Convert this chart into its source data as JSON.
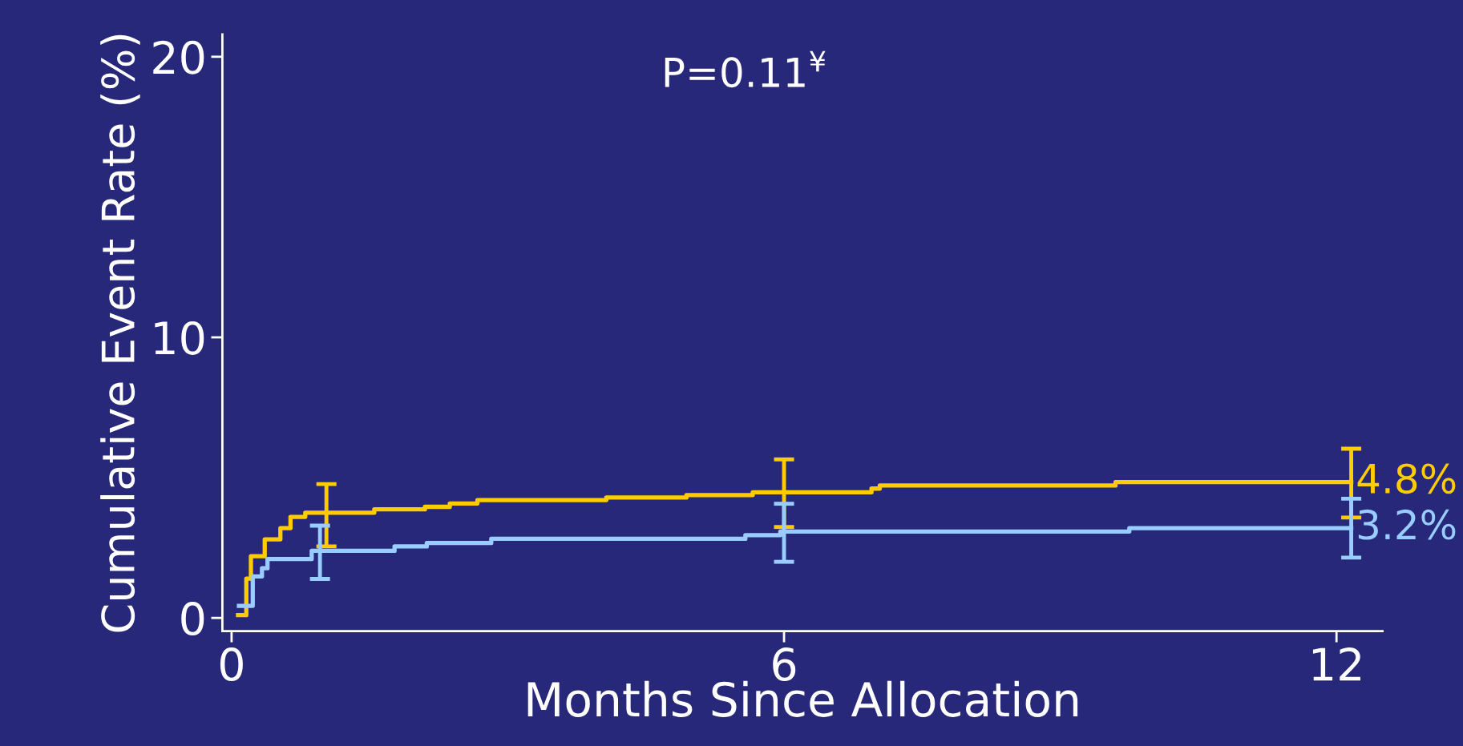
{
  "chart_data": {
    "type": "step",
    "xlabel": "Months Since Allocation",
    "ylabel": "Cumulative Event Rate (%)",
    "annotations": [
      "P=0.11$^{¥}$"
    ],
    "xlim": [
      -0.1,
      12.5
    ],
    "xticks": [
      0,
      6,
      12
    ],
    "ylim": [
      -0.47,
      20.8
    ],
    "yticks": [
      0,
      10,
      20
    ],
    "grid": false,
    "line_style": "solid",
    "marker": "none",
    "series": [
      {
        "color": "#ffcc00",
        "x": [
          0.07,
          0.16,
          0.21,
          0.36,
          0.53,
          0.64,
          0.8,
          1.03,
          1.55,
          2.1,
          2.37,
          2.67,
          4.07,
          4.94,
          5.66,
          6.0,
          6.95,
          7.04,
          9.6,
          12.16
        ],
        "values": [
          0.1,
          1.4,
          2.2,
          2.8,
          3.2,
          3.6,
          3.75,
          3.75,
          3.87,
          3.96,
          4.08,
          4.2,
          4.29,
          4.38,
          4.48,
          4.48,
          4.61,
          4.72,
          4.84,
          4.84
        ],
        "errors": [
          null,
          null,
          null,
          null,
          null,
          null,
          null,
          [
            2.55,
            4.77
          ],
          null,
          null,
          null,
          null,
          null,
          null,
          null,
          [
            3.24,
            5.65
          ],
          null,
          null,
          null,
          [
            3.58,
            6.03
          ]
        ],
        "value_labels": [
          null,
          null,
          null,
          null,
          null,
          null,
          null,
          null,
          null,
          null,
          null,
          null,
          null,
          null,
          null,
          null,
          null,
          null,
          null,
          "4.8%"
        ]
      },
      {
        "color": "#99ccff",
        "x": [
          0.08,
          0.23,
          0.33,
          0.39,
          0.87,
          0.96,
          1.77,
          2.12,
          2.82,
          5.58,
          5.96,
          6.0,
          9.75,
          12.16
        ],
        "values": [
          0.43,
          1.48,
          1.77,
          2.1,
          2.39,
          2.39,
          2.55,
          2.67,
          2.82,
          2.95,
          3.08,
          3.08,
          3.2,
          3.2
        ],
        "errors": [
          null,
          null,
          null,
          null,
          null,
          [
            1.39,
            3.29
          ],
          null,
          null,
          null,
          null,
          null,
          [
            2.0,
            4.07
          ],
          null,
          [
            2.15,
            4.25
          ]
        ],
        "value_labels": [
          null,
          null,
          null,
          null,
          null,
          null,
          null,
          null,
          null,
          null,
          null,
          null,
          null,
          "3.2%"
        ]
      }
    ]
  }
}
